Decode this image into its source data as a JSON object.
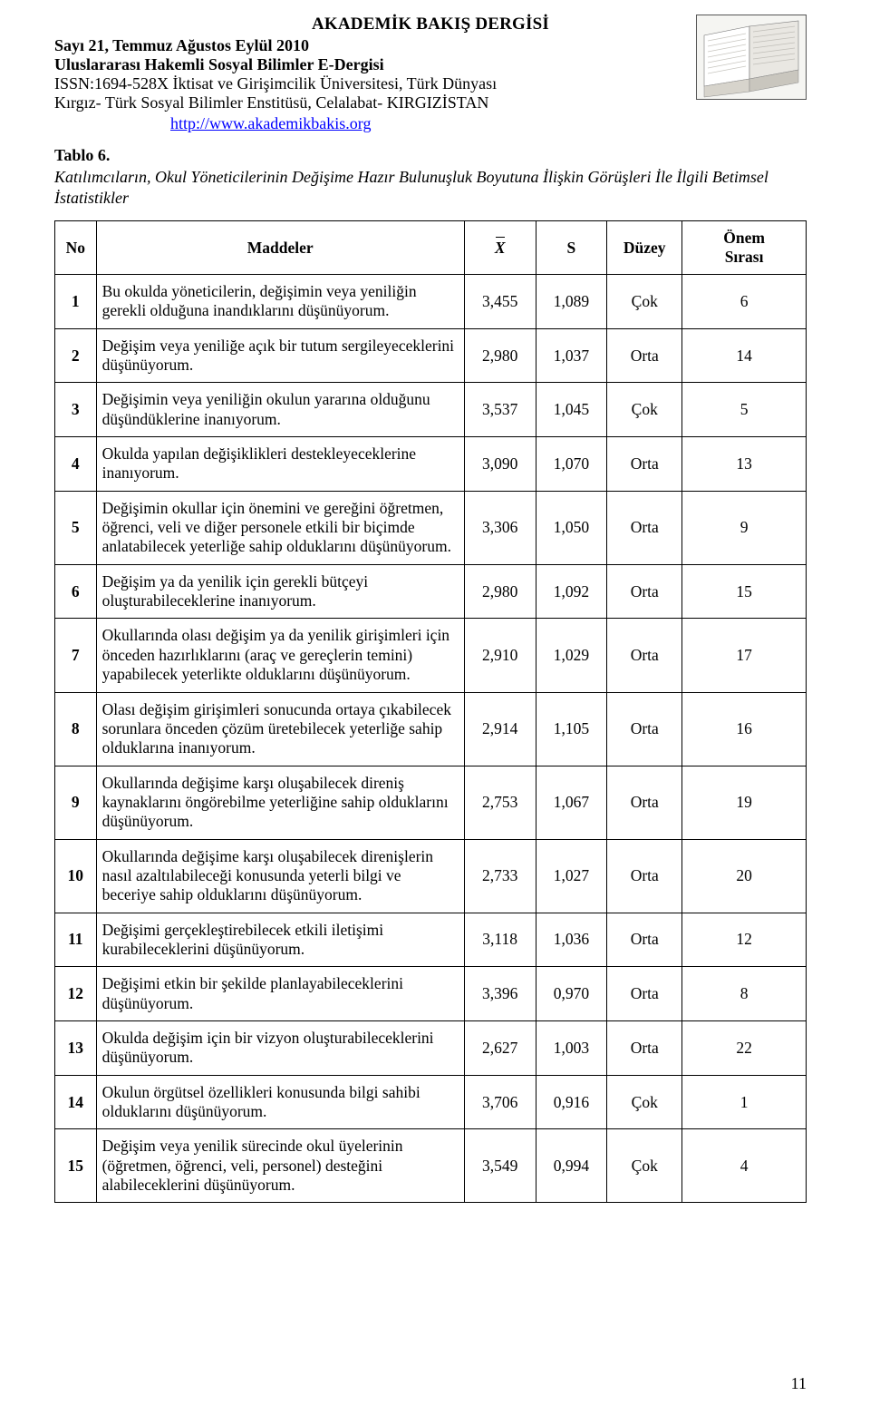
{
  "header": {
    "journal_title": "AKADEMİK BAKIŞ DERGİSİ",
    "issue_line": "Sayı 21, Temmuz Ağustos Eylül 2010",
    "subtitle": "Uluslararası Hakemli Sosyal Bilimler E-Dergisi",
    "issn_line": "ISSN:1694-528X İktisat ve Girişimcilik Üniversitesi, Türk Dünyası",
    "institute_line": "Kırgız- Türk Sosyal Bilimler Enstitüsü, Celalabat- KIRGIZİSTAN",
    "url": "http://www.akademikbakis.org"
  },
  "table_label": "Tablo 6.",
  "table_caption": "Katılımcıların, Okul Yöneticilerinin Değişime Hazır Bulunuşluk Boyutuna İlişkin Görüşleri İle İlgili Betimsel İstatistikler",
  "columns": {
    "no": "No",
    "maddeler": "Maddeler",
    "xbar": "X",
    "s": "S",
    "duzey": "Düzey",
    "onem1": "Önem",
    "onem2": "Sırası"
  },
  "rows": [
    {
      "no": "1",
      "text": "Bu okulda yöneticilerin, değişimin veya yeniliğin gerekli olduğuna inandıklarını düşünüyorum.",
      "x": "3,455",
      "s": "1,089",
      "d": "Çok",
      "r": "6"
    },
    {
      "no": "2",
      "text": "Değişim veya yeniliğe açık bir tutum sergileyeceklerini düşünüyorum.",
      "x": "2,980",
      "s": "1,037",
      "d": "Orta",
      "r": "14"
    },
    {
      "no": "3",
      "text": "Değişimin veya yeniliğin okulun yararına olduğunu düşündüklerine inanıyorum.",
      "x": "3,537",
      "s": "1,045",
      "d": "Çok",
      "r": "5"
    },
    {
      "no": "4",
      "text": "Okulda yapılan değişiklikleri destekleyeceklerine inanıyorum.",
      "x": "3,090",
      "s": "1,070",
      "d": "Orta",
      "r": "13"
    },
    {
      "no": "5",
      "text": "Değişimin okullar için önemini ve gereğini öğretmen, öğrenci, veli ve diğer personele etkili bir biçimde anlatabilecek yeterliğe sahip olduklarını düşünüyorum.",
      "x": "3,306",
      "s": "1,050",
      "d": "Orta",
      "r": "9"
    },
    {
      "no": "6",
      "text": "Değişim ya da yenilik için gerekli bütçeyi oluşturabileceklerine inanıyorum.",
      "x": "2,980",
      "s": "1,092",
      "d": "Orta",
      "r": "15"
    },
    {
      "no": "7",
      "text": "Okullarında olası değişim ya da yenilik girişimleri için önceden hazırlıklarını (araç ve gereçlerin temini) yapabilecek yeterlikte olduklarını düşünüyorum.",
      "x": "2,910",
      "s": "1,029",
      "d": "Orta",
      "r": "17"
    },
    {
      "no": "8",
      "text": "Olası değişim girişimleri sonucunda ortaya çıkabilecek sorunlara önceden çözüm üretebilecek yeterliğe sahip olduklarına inanıyorum.",
      "x": "2,914",
      "s": "1,105",
      "d": "Orta",
      "r": "16"
    },
    {
      "no": "9",
      "text": "Okullarında değişime karşı oluşabilecek direniş kaynaklarını öngörebilme yeterliğine sahip olduklarını düşünüyorum.",
      "x": "2,753",
      "s": "1,067",
      "d": "Orta",
      "r": "19"
    },
    {
      "no": "10",
      "text": "Okullarında değişime karşı oluşabilecek direnişlerin nasıl azaltılabileceği konusunda yeterli bilgi ve beceriye sahip olduklarını düşünüyorum.",
      "x": "2,733",
      "s": "1,027",
      "d": "Orta",
      "r": "20"
    },
    {
      "no": "11",
      "text": "Değişimi gerçekleştirebilecek etkili iletişimi kurabileceklerini düşünüyorum.",
      "x": "3,118",
      "s": "1,036",
      "d": "Orta",
      "r": "12"
    },
    {
      "no": "12",
      "text": "Değişimi etkin bir şekilde planlayabileceklerini düşünüyorum.",
      "x": "3,396",
      "s": "0,970",
      "d": "Orta",
      "r": "8"
    },
    {
      "no": "13",
      "text": "Okulda değişim için bir vizyon oluşturabileceklerini düşünüyorum.",
      "x": "2,627",
      "s": "1,003",
      "d": "Orta",
      "r": "22"
    },
    {
      "no": "14",
      "text": "Okulun örgütsel özellikleri konusunda bilgi sahibi olduklarını düşünüyorum.",
      "x": "3,706",
      "s": "0,916",
      "d": "Çok",
      "r": "1"
    },
    {
      "no": "15",
      "text": "Değişim veya yenilik sürecinde okul üyelerinin (öğretmen, öğrenci, veli, personel) desteğini alabileceklerini düşünüyorum.",
      "x": "3,549",
      "s": "0,994",
      "d": "Çok",
      "r": "4"
    }
  ],
  "page_number": "11"
}
